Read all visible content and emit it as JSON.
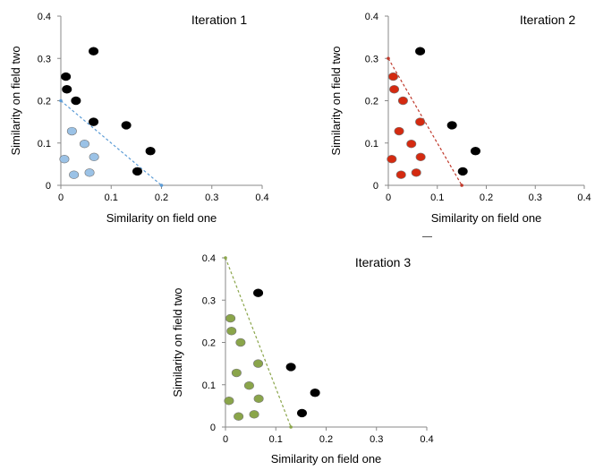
{
  "chart_data": [
    {
      "type": "scatter",
      "title": "Iteration 1",
      "xlabel": "Similarity on field one",
      "ylabel": "Similarity on field two",
      "xlim": [
        0,
        0.4
      ],
      "ylim": [
        0,
        0.4
      ],
      "xticks": [
        "0",
        "0.1",
        "0.2",
        "0.3",
        "0.4"
      ],
      "yticks": [
        "0",
        "0.1",
        "0.2",
        "0.3",
        "0.4"
      ],
      "grid": false,
      "series": [
        {
          "color": "#000000",
          "points": [
            [
              0.065,
              0.317
            ],
            [
              0.01,
              0.257
            ],
            [
              0.012,
              0.227
            ],
            [
              0.03,
              0.2
            ],
            [
              0.065,
              0.15
            ],
            [
              0.13,
              0.142
            ],
            [
              0.178,
              0.081
            ],
            [
              0.152,
              0.033
            ]
          ]
        },
        {
          "color": "#9bc2e6",
          "points": [
            [
              0.022,
              0.128
            ],
            [
              0.047,
              0.098
            ],
            [
              0.007,
              0.062
            ],
            [
              0.066,
              0.067
            ],
            [
              0.026,
              0.025
            ],
            [
              0.057,
              0.03
            ]
          ]
        }
      ],
      "line": {
        "points": [
          [
            0,
            0.2
          ],
          [
            0.2,
            0
          ]
        ],
        "color": "#5b9bd5",
        "style": "dashed"
      }
    },
    {
      "type": "scatter",
      "title": "Iteration 2",
      "xlabel": "Similarity on field one",
      "ylabel": "Similarity on field two",
      "xlim": [
        0,
        0.4
      ],
      "ylim": [
        0,
        0.4
      ],
      "xticks": [
        "0",
        "0.1",
        "0.2",
        "0.3",
        "0.4"
      ],
      "yticks": [
        "0",
        "0.1",
        "0.2",
        "0.3",
        "0.4"
      ],
      "grid": false,
      "series": [
        {
          "color": "#000000",
          "points": [
            [
              0.065,
              0.317
            ],
            [
              0.13,
              0.142
            ],
            [
              0.178,
              0.081
            ],
            [
              0.152,
              0.033
            ]
          ]
        },
        {
          "color": "#d42a10",
          "points": [
            [
              0.01,
              0.257
            ],
            [
              0.012,
              0.227
            ],
            [
              0.03,
              0.2
            ],
            [
              0.065,
              0.15
            ],
            [
              0.022,
              0.128
            ],
            [
              0.047,
              0.098
            ],
            [
              0.007,
              0.062
            ],
            [
              0.066,
              0.067
            ],
            [
              0.026,
              0.025
            ],
            [
              0.057,
              0.03
            ]
          ]
        }
      ],
      "line": {
        "points": [
          [
            0,
            0.3
          ],
          [
            0.15,
            0
          ]
        ],
        "color": "#c0392b",
        "style": "dashed"
      }
    },
    {
      "type": "scatter",
      "title": "Iteration 3",
      "xlabel": "Similarity on field one",
      "ylabel": "Similarity on field two",
      "xlim": [
        0,
        0.4
      ],
      "ylim": [
        0,
        0.4
      ],
      "xticks": [
        "0",
        "0.1",
        "0.2",
        "0.3",
        "0.4"
      ],
      "yticks": [
        "0",
        "0.1",
        "0.2",
        "0.3",
        "0.4"
      ],
      "grid": false,
      "series": [
        {
          "color": "#000000",
          "points": [
            [
              0.065,
              0.317
            ],
            [
              0.13,
              0.142
            ],
            [
              0.178,
              0.081
            ],
            [
              0.152,
              0.033
            ]
          ]
        },
        {
          "color": "#8aa54a",
          "points": [
            [
              0.01,
              0.257
            ],
            [
              0.012,
              0.227
            ],
            [
              0.03,
              0.2
            ],
            [
              0.065,
              0.15
            ],
            [
              0.022,
              0.128
            ],
            [
              0.047,
              0.098
            ],
            [
              0.007,
              0.062
            ],
            [
              0.066,
              0.067
            ],
            [
              0.026,
              0.025
            ],
            [
              0.057,
              0.03
            ]
          ]
        }
      ],
      "line": {
        "points": [
          [
            0,
            0.4
          ],
          [
            0.13,
            0
          ]
        ],
        "color": "#8aa54a",
        "style": "dashed"
      }
    }
  ]
}
